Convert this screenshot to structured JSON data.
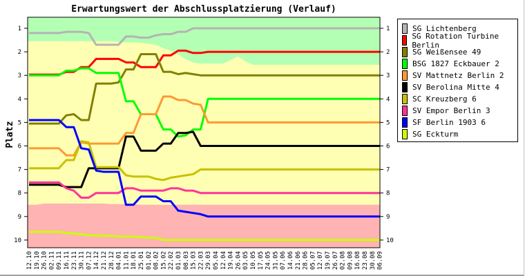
{
  "chart_data": {
    "type": "line",
    "title": "Erwartungswert der Abschlussplatzierung (Verlauf)",
    "xlabel": "",
    "ylabel": "Platz",
    "ylim": [
      1,
      10
    ],
    "y_inverted": true,
    "yticks": [
      "1",
      "2",
      "3",
      "4",
      "5",
      "6",
      "7",
      "8",
      "9",
      "10"
    ],
    "legend_position": "right",
    "categories": [
      "12.10",
      "19.10",
      "26.10",
      "02.11",
      "09.11",
      "16.11",
      "23.11",
      "30.11",
      "07.12",
      "14.12",
      "21.12",
      "28.12",
      "04.01",
      "11.01",
      "18.01",
      "25.01",
      "01.02",
      "08.02",
      "15.02",
      "22.02",
      "01.03",
      "08.03",
      "15.03",
      "22.03",
      "29.03",
      "05.04",
      "12.04",
      "19.04",
      "26.04",
      "03.05",
      "10.05",
      "17.05",
      "24.05",
      "31.05",
      "07.06",
      "14.06",
      "21.06",
      "28.06",
      "05.07",
      "12.07",
      "19.07",
      "26.07",
      "02.08",
      "09.08",
      "16.08",
      "23.08",
      "30.08",
      "06.09"
    ],
    "zones": {
      "colors": {
        "top": "#b3ffb3",
        "middle": "#ffffb3",
        "bottom": "#ffb3b3"
      },
      "upper_boundary": [
        1.55,
        1.55,
        1.55,
        1.55,
        1.55,
        1.55,
        1.55,
        1.55,
        1.55,
        1.55,
        1.55,
        1.55,
        1.58,
        1.6,
        1.6,
        1.62,
        1.65,
        1.7,
        1.85,
        1.95,
        2.1,
        2.3,
        2.45,
        2.5,
        2.5,
        2.5,
        2.5,
        2.35,
        2.2,
        2.4,
        2.55,
        2.55,
        2.55,
        2.55,
        2.55,
        2.55,
        2.55,
        2.55,
        2.55,
        2.55,
        2.55,
        2.55,
        2.55,
        2.55,
        2.55,
        2.55,
        2.55,
        2.55
      ],
      "lower_boundary": [
        8.5,
        8.5,
        8.45,
        8.45,
        8.45,
        8.45,
        8.45,
        8.45,
        8.45,
        8.45,
        8.45,
        8.47,
        8.47,
        8.47,
        8.47,
        8.5,
        8.5,
        8.5,
        8.5,
        8.5,
        8.5,
        8.5,
        8.5,
        8.5,
        8.5,
        8.5,
        8.5,
        8.5,
        8.5,
        8.5,
        8.5,
        8.5,
        8.5,
        8.5,
        8.5,
        8.5,
        8.5,
        8.5,
        8.5,
        8.5,
        8.5,
        8.5,
        8.5,
        8.5,
        8.5,
        8.5,
        8.5,
        8.5
      ]
    },
    "series": [
      {
        "name": "SG Lichtenberg",
        "color": "#b4b4b4",
        "values": [
          1.2,
          1.2,
          1.2,
          1.2,
          1.2,
          1.15,
          1.15,
          1.15,
          1.2,
          1.7,
          1.7,
          1.7,
          1.7,
          1.35,
          1.35,
          1.4,
          1.4,
          1.3,
          1.25,
          1.25,
          1.15,
          1.15,
          1.0,
          1.0,
          1.0,
          1,
          1,
          1,
          1,
          1,
          1,
          1,
          1,
          1,
          1,
          1,
          1,
          1,
          1,
          1,
          1,
          1,
          1,
          1,
          1,
          1,
          1,
          1
        ]
      },
      {
        "name": "SG Rotation Turbine Berlin",
        "color": "#ff0000",
        "values": [
          2.97,
          2.97,
          2.97,
          2.97,
          2.97,
          2.85,
          2.85,
          2.65,
          2.65,
          2.3,
          2.3,
          2.3,
          2.3,
          2.45,
          2.45,
          2.65,
          2.65,
          2.65,
          2.15,
          2.15,
          1.95,
          1.95,
          2.05,
          2.05,
          2.0,
          2,
          2,
          2,
          2,
          2,
          2,
          2,
          2,
          2,
          2,
          2,
          2,
          2,
          2,
          2,
          2,
          2,
          2,
          2,
          2,
          2,
          2,
          2
        ]
      },
      {
        "name": "SG Weißensee 49",
        "color": "#808000",
        "values": [
          5.05,
          5.05,
          5.05,
          5.05,
          5.05,
          4.7,
          4.65,
          4.9,
          4.9,
          3.35,
          3.35,
          3.35,
          3.3,
          2.75,
          2.75,
          2.1,
          2.1,
          2.1,
          2.85,
          2.85,
          2.95,
          2.9,
          2.95,
          3.0,
          3.0,
          3,
          3,
          3,
          3,
          3,
          3,
          3,
          3,
          3,
          3,
          3,
          3,
          3,
          3,
          3,
          3,
          3,
          3,
          3,
          3,
          3,
          3,
          3
        ]
      },
      {
        "name": "BSG 1827 Eckbauer 2",
        "color": "#00ff00",
        "values": [
          3.0,
          3.0,
          3.0,
          3.0,
          3.0,
          2.8,
          2.8,
          2.7,
          2.7,
          2.9,
          2.9,
          2.9,
          2.9,
          4.1,
          4.1,
          4.65,
          4.65,
          4.65,
          5.3,
          5.3,
          5.6,
          5.55,
          5.3,
          5.3,
          4.0,
          4,
          4,
          4,
          4,
          4,
          4,
          4,
          4,
          4,
          4,
          4,
          4,
          4,
          4,
          4,
          4,
          4,
          4,
          4,
          4,
          4,
          4,
          4
        ]
      },
      {
        "name": "SV Mattnetz Berlin 2",
        "color": "#ff9933",
        "values": [
          6.1,
          6.1,
          6.1,
          6.1,
          6.1,
          6.4,
          6.4,
          5.85,
          5.9,
          5.9,
          5.9,
          5.9,
          5.9,
          5.45,
          5.45,
          4.65,
          4.65,
          4.65,
          3.9,
          3.9,
          4.05,
          4.05,
          4.2,
          4.25,
          5.0,
          5,
          5,
          5,
          5,
          5,
          5,
          5,
          5,
          5,
          5,
          5,
          5,
          5,
          5,
          5,
          5,
          5,
          5,
          5,
          5,
          5,
          5,
          5
        ]
      },
      {
        "name": "SV Berolina Mitte 4",
        "color": "#000000",
        "values": [
          7.65,
          7.65,
          7.65,
          7.65,
          7.65,
          7.75,
          7.75,
          7.75,
          6.95,
          6.95,
          6.95,
          6.95,
          6.95,
          5.6,
          5.6,
          6.2,
          6.2,
          6.2,
          5.9,
          5.9,
          5.45,
          5.45,
          5.4,
          6.0,
          6.0,
          6,
          6,
          6,
          6,
          6,
          6,
          6,
          6,
          6,
          6,
          6,
          6,
          6,
          6,
          6,
          6,
          6,
          6,
          6,
          6,
          6,
          6,
          6
        ]
      },
      {
        "name": "SC Kreuzberg 6",
        "color": "#c8c000",
        "values": [
          6.95,
          6.95,
          6.95,
          6.95,
          6.95,
          6.6,
          6.6,
          5.8,
          5.85,
          6.9,
          6.9,
          6.9,
          6.9,
          7.25,
          7.3,
          7.3,
          7.3,
          7.4,
          7.45,
          7.35,
          7.3,
          7.25,
          7.2,
          7.0,
          7.0,
          7,
          7,
          7,
          7,
          7,
          7,
          7,
          7,
          7,
          7,
          7,
          7,
          7,
          7,
          7,
          7,
          7,
          7,
          7,
          7,
          7,
          7,
          7
        ]
      },
      {
        "name": "SV Empor Berlin 3",
        "color": "#ff3399",
        "values": [
          7.55,
          7.55,
          7.55,
          7.55,
          7.55,
          7.8,
          7.9,
          8.2,
          8.2,
          8.0,
          8.0,
          8.0,
          8.0,
          7.8,
          7.8,
          7.9,
          7.9,
          7.9,
          7.9,
          7.8,
          7.8,
          7.9,
          7.9,
          8.0,
          8.0,
          8,
          8,
          8,
          8,
          8,
          8,
          8,
          8,
          8,
          8,
          8,
          8,
          8,
          8,
          8,
          8,
          8,
          8,
          8,
          8,
          8,
          8,
          8
        ]
      },
      {
        "name": "SF Berlin 1903 6",
        "color": "#0000ff",
        "values": [
          4.9,
          4.9,
          4.9,
          4.9,
          4.9,
          5.2,
          5.2,
          6.1,
          6.15,
          7.05,
          7.1,
          7.1,
          7.1,
          8.5,
          8.5,
          8.15,
          8.15,
          8.15,
          8.35,
          8.35,
          8.75,
          8.8,
          8.85,
          8.9,
          9.0,
          9,
          9,
          9,
          9,
          9,
          9,
          9,
          9,
          9,
          9,
          9,
          9,
          9,
          9,
          9,
          9,
          9,
          9,
          9,
          9,
          9,
          9,
          9
        ]
      },
      {
        "name": "SG Eckturm",
        "color": "#ccff00",
        "values": [
          9.65,
          9.65,
          9.65,
          9.65,
          9.65,
          9.7,
          9.72,
          9.75,
          9.8,
          9.8,
          9.82,
          9.82,
          9.85,
          9.85,
          9.85,
          9.87,
          9.9,
          9.9,
          10.0,
          10,
          10,
          10,
          10,
          10,
          10,
          10,
          10,
          10,
          10,
          10,
          10,
          10,
          10,
          10,
          10,
          10,
          10,
          10,
          10,
          10,
          10,
          10,
          10,
          10,
          10,
          10,
          10,
          10
        ]
      }
    ]
  }
}
